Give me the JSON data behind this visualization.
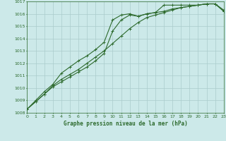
{
  "title": "Graphe pression niveau de la mer (hPa)",
  "background_color": "#cce9e9",
  "grid_color": "#aacccc",
  "line_color": "#2d6a2d",
  "xlim": [
    0,
    23
  ],
  "ylim": [
    1008,
    1017
  ],
  "xticks": [
    0,
    1,
    2,
    3,
    4,
    5,
    6,
    7,
    8,
    9,
    10,
    11,
    12,
    13,
    14,
    15,
    16,
    17,
    18,
    19,
    20,
    21,
    22,
    23
  ],
  "yticks": [
    1008,
    1009,
    1010,
    1011,
    1012,
    1013,
    1014,
    1015,
    1016,
    1017
  ],
  "series1_y": [
    1008.3,
    1008.9,
    1009.5,
    1010.2,
    1010.7,
    1011.1,
    1011.5,
    1012.0,
    1012.5,
    1013.0,
    1013.6,
    1014.2,
    1014.8,
    1015.3,
    1015.7,
    1015.9,
    1016.1,
    1016.3,
    1016.5,
    1016.6,
    1016.7,
    1016.8,
    1016.8,
    1016.3
  ],
  "series2_y": [
    1008.3,
    1008.9,
    1009.5,
    1010.1,
    1010.5,
    1010.9,
    1011.3,
    1011.7,
    1012.2,
    1012.8,
    1014.6,
    1015.5,
    1015.9,
    1015.8,
    1016.0,
    1016.1,
    1016.2,
    1016.4,
    1016.5,
    1016.6,
    1016.7,
    1016.8,
    1016.8,
    1016.2
  ],
  "series3_y": [
    1008.3,
    1009.0,
    1009.7,
    1010.3,
    1011.2,
    1011.7,
    1012.2,
    1012.6,
    1013.1,
    1013.7,
    1015.5,
    1015.9,
    1016.0,
    1015.8,
    1016.0,
    1016.1,
    1016.7,
    1016.7,
    1016.7,
    1016.7,
    1016.7,
    1016.8,
    1016.8,
    1016.2
  ]
}
